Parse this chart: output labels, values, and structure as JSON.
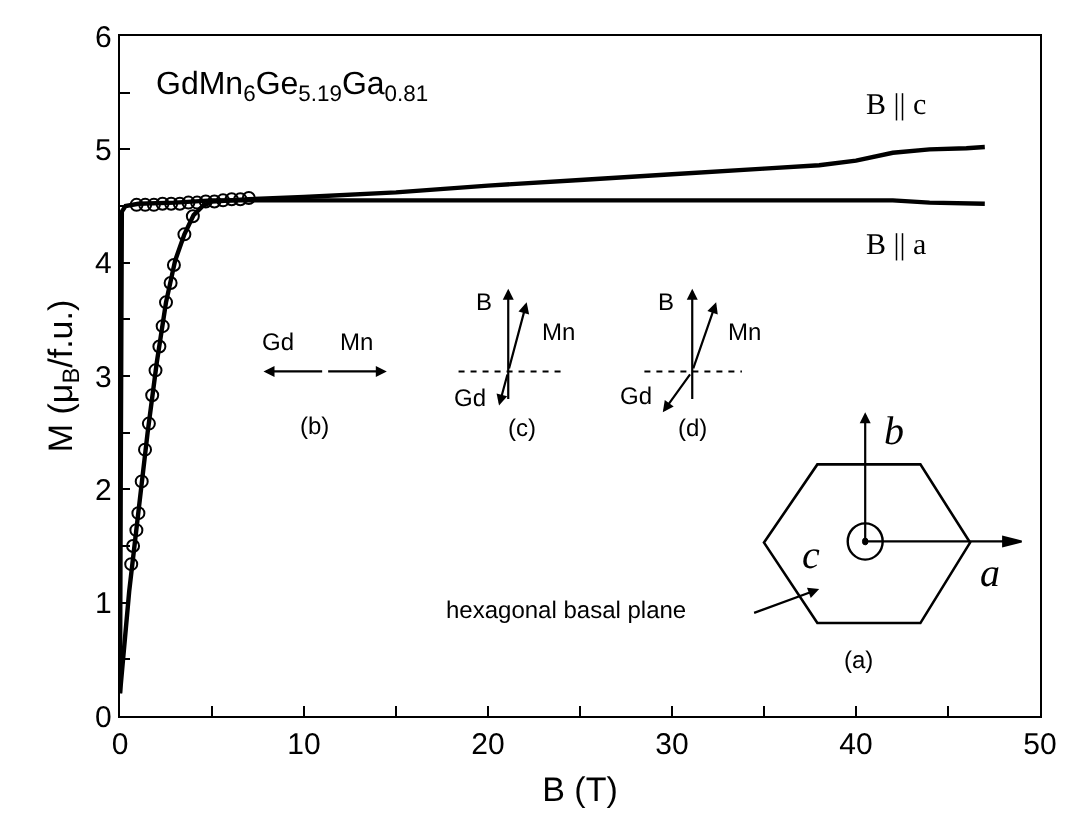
{
  "chart_data": {
    "type": "line",
    "xlabel": "B (T)",
    "ylabel": "M (μ$_{B}$/f.u.)",
    "xlim": [
      0,
      50
    ],
    "ylim": [
      0,
      6
    ],
    "xticks": [
      0,
      {
        "value": 5,
        "label": null
      },
      10,
      {
        "value": 15,
        "label": null
      },
      20,
      {
        "value": 25,
        "label": null
      },
      30,
      {
        "value": 35,
        "label": null
      },
      40,
      {
        "value": 45,
        "label": null
      },
      50
    ],
    "yticks": [
      0,
      {
        "value": 0.5,
        "label": null
      },
      1,
      {
        "value": 1.5,
        "label": null
      },
      2,
      {
        "value": 2.5,
        "label": null
      },
      3,
      {
        "value": 3.5,
        "label": null
      },
      4,
      {
        "value": 4.5,
        "label": null
      },
      5,
      {
        "value": 5.5,
        "label": null
      },
      6
    ],
    "series": [
      {
        "name": "B || c",
        "color": "#000000",
        "x": [
          0,
          0.5,
          1,
          1.5,
          2,
          2.5,
          3,
          3.5,
          4,
          4.5,
          5,
          7,
          10,
          15,
          20,
          25,
          30,
          35,
          38,
          40,
          42,
          44,
          46,
          47
        ],
        "values": [
          0.2,
          1.1,
          1.8,
          2.5,
          3.12,
          3.65,
          4.02,
          4.25,
          4.42,
          4.5,
          4.54,
          4.56,
          4.58,
          4.62,
          4.68,
          4.73,
          4.78,
          4.83,
          4.86,
          4.9,
          4.97,
          5.0,
          5.01,
          5.02
        ]
      },
      {
        "name": "B || a",
        "color": "#000000",
        "x": [
          0,
          0.05,
          0.1,
          0.3,
          1,
          3,
          5,
          10,
          20,
          30,
          40,
          42,
          44,
          47
        ],
        "values": [
          0.2,
          2.5,
          4.45,
          4.5,
          4.52,
          4.53,
          4.55,
          4.55,
          4.55,
          4.55,
          4.55,
          4.55,
          4.53,
          4.52
        ]
      },
      {
        "type": "scatter",
        "marker": "circle",
        "color": "#000000",
        "x": [
          0.61,
          0.71,
          0.89,
          1.0,
          1.18,
          1.36,
          1.57,
          1.75,
          1.93,
          2.14,
          2.32,
          2.5,
          2.75,
          2.93,
          3.5,
          3.96
        ],
        "values": [
          1.34,
          1.5,
          1.64,
          1.79,
          2.07,
          2.35,
          2.58,
          2.83,
          3.05,
          3.26,
          3.44,
          3.65,
          3.82,
          3.98,
          4.25,
          4.41
        ]
      },
      {
        "type": "scatter",
        "marker": "circle",
        "color": "#000000",
        "x": [
          0.9,
          1.37,
          1.84,
          2.31,
          2.78,
          3.25,
          3.72,
          4.19,
          4.66,
          5.13,
          5.6,
          6.07,
          6.54,
          7.0
        ],
        "values": [
          4.51,
          4.51,
          4.51,
          4.52,
          4.52,
          4.52,
          4.53,
          4.53,
          4.54,
          4.54,
          4.55,
          4.56,
          4.56,
          4.57
        ]
      }
    ],
    "annotations": [
      "GdMn$_{6}$Ge$_{5.19}$Ga$_{0.81}$",
      "Gd",
      "Mn",
      "(b)",
      "B",
      "Mn",
      "Gd",
      "(c)",
      "B",
      "Mn",
      "Gd",
      "(d)",
      "b",
      "c",
      "a",
      "(a)",
      "hexagonal basal plane"
    ]
  }
}
